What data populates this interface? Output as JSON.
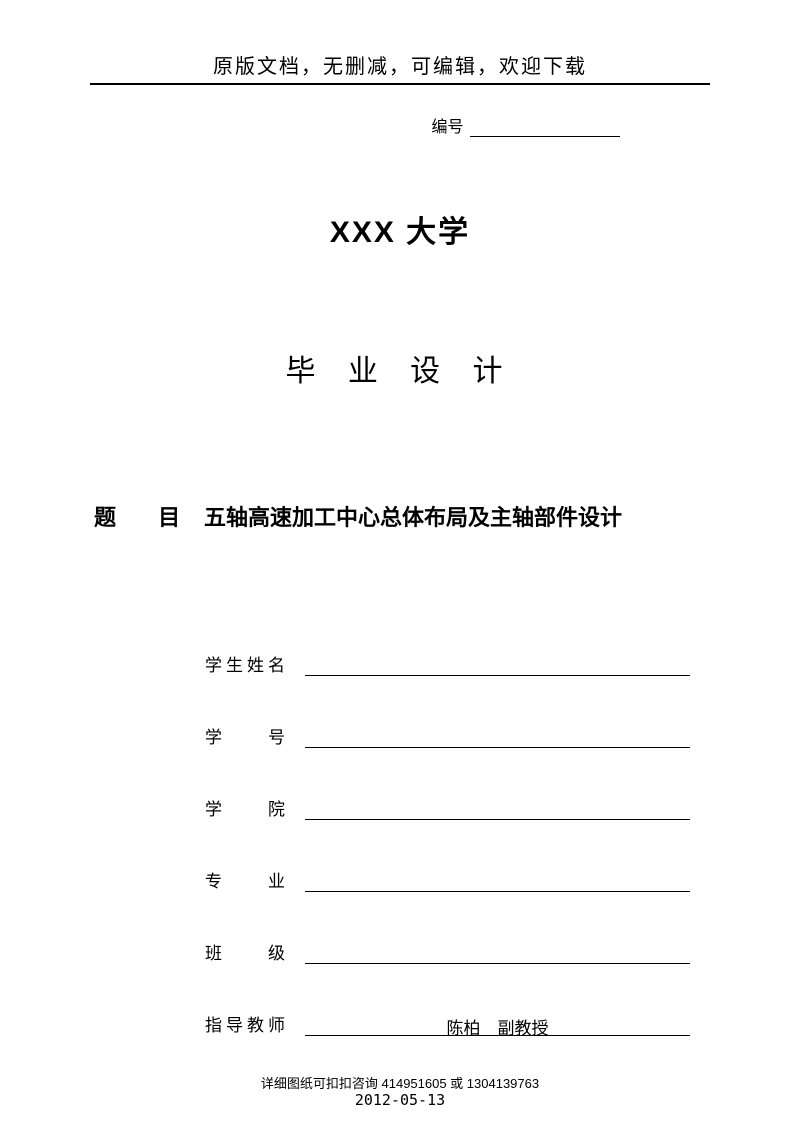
{
  "header": {
    "text": "原版文档，无删减，可编辑，欢迎下载"
  },
  "serial": {
    "label": "编号"
  },
  "university": "XXX 大学",
  "doc_type": "毕 业 设 计",
  "title": {
    "label": "题  目",
    "value": "五轴高速加工中心总体布局及主轴部件设计"
  },
  "form": {
    "rows": [
      {
        "label": "学生姓名",
        "value": ""
      },
      {
        "label": "学　　号",
        "value": ""
      },
      {
        "label": "学　　院",
        "value": ""
      },
      {
        "label": "专　　业",
        "value": ""
      },
      {
        "label": "班　　级",
        "value": ""
      },
      {
        "label": "指导教师",
        "value": "陈柏　副教授"
      }
    ]
  },
  "date": "2012-05-13",
  "footer": "详细图纸可扣扣咨询 414951605 或 1304139763"
}
